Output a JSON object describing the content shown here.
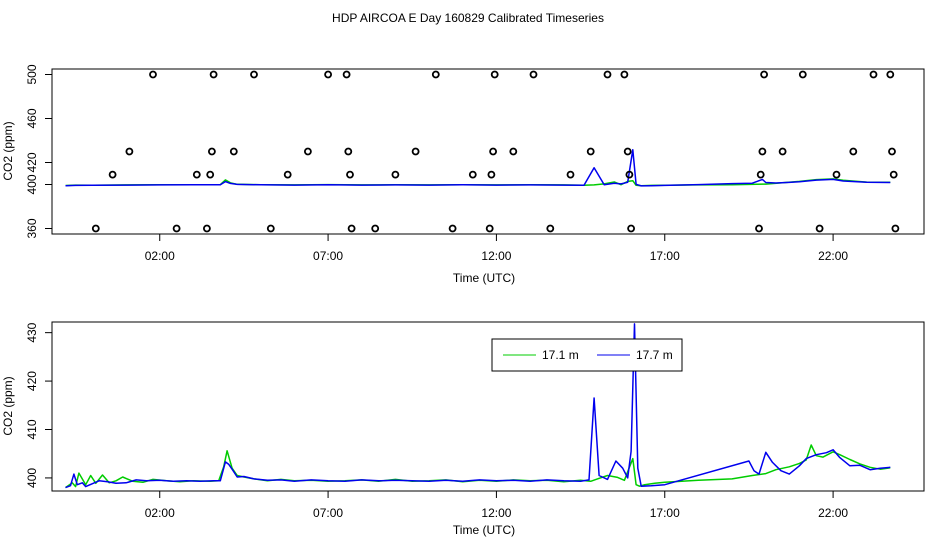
{
  "title": "HDP AIRCOA E  Day 160829  Calibrated Timeseries",
  "colors": {
    "green": "#00cc00",
    "blue": "#0000ee"
  },
  "chart_data": [
    {
      "type": "scatter",
      "xlabel": "Time (UTC)",
      "ylabel": "CO2 (ppm)",
      "xlim": [
        -1.2,
        24.7
      ],
      "ylim": [
        355,
        505
      ],
      "xticks": [
        2,
        7,
        12,
        17,
        22
      ],
      "xtick_labels": [
        "02:00",
        "07:00",
        "12:00",
        "17:00",
        "22:00"
      ],
      "yticks": [
        360,
        400,
        420,
        460,
        500
      ],
      "ytick_labels": [
        "360",
        "400",
        "420",
        "460",
        "500"
      ],
      "grid": false,
      "calibration_points": [
        [
          0.1,
          360
        ],
        [
          0.6,
          409
        ],
        [
          1.1,
          430
        ],
        [
          1.8,
          500
        ],
        [
          2.5,
          360
        ],
        [
          3.1,
          409
        ],
        [
          3.4,
          360
        ],
        [
          3.5,
          409
        ],
        [
          3.55,
          430
        ],
        [
          3.6,
          500
        ],
        [
          4.2,
          430
        ],
        [
          4.8,
          500
        ],
        [
          5.3,
          360
        ],
        [
          5.8,
          409
        ],
        [
          6.4,
          430
        ],
        [
          7.0,
          500
        ],
        [
          7.6,
          430
        ],
        [
          7.55,
          500
        ],
        [
          7.65,
          409
        ],
        [
          7.7,
          360
        ],
        [
          8.4,
          360
        ],
        [
          9.0,
          409
        ],
        [
          9.6,
          430
        ],
        [
          10.2,
          500
        ],
        [
          10.7,
          360
        ],
        [
          11.3,
          409
        ],
        [
          11.8,
          360
        ],
        [
          11.85,
          409
        ],
        [
          11.9,
          430
        ],
        [
          11.95,
          500
        ],
        [
          12.5,
          430
        ],
        [
          13.1,
          500
        ],
        [
          13.6,
          360
        ],
        [
          14.2,
          409
        ],
        [
          14.8,
          430
        ],
        [
          15.3,
          500
        ],
        [
          15.8,
          500
        ],
        [
          15.9,
          430
        ],
        [
          15.95,
          409
        ],
        [
          16.0,
          360
        ],
        [
          19.8,
          360
        ],
        [
          19.85,
          409
        ],
        [
          19.9,
          430
        ],
        [
          19.95,
          500
        ],
        [
          20.5,
          430
        ],
        [
          21.1,
          500
        ],
        [
          21.6,
          360
        ],
        [
          22.1,
          409
        ],
        [
          22.6,
          430
        ],
        [
          23.2,
          500
        ],
        [
          23.7,
          500
        ],
        [
          23.75,
          430
        ],
        [
          23.8,
          409
        ],
        [
          23.85,
          360
        ]
      ],
      "series": [
        {
          "color": "#00cc00",
          "x": [
            -0.8,
            -0.5,
            0,
            1,
            2,
            3,
            3.8,
            3.95,
            4.1,
            4.3,
            5,
            6,
            7,
            8,
            9,
            10,
            11,
            12,
            13,
            14,
            14.6,
            14.9,
            15.2,
            15.5,
            15.7,
            15.9,
            16.05,
            16.15,
            16.3,
            16.6,
            17,
            18,
            19,
            20,
            20.5,
            21,
            21.5,
            22,
            22.3,
            23,
            23.7
          ],
          "y": [
            399.1,
            399.5,
            399.4,
            399.6,
            399.7,
            399.7,
            399.8,
            404.2,
            401.5,
            400.2,
            399.8,
            399.6,
            399.9,
            399.6,
            399.7,
            399.6,
            399.8,
            399.6,
            399.7,
            399.6,
            399.4,
            399.6,
            400.5,
            402.3,
            399.8,
            402.8,
            403.5,
            399.3,
            398.9,
            399.2,
            399.3,
            399.6,
            399.8,
            400.4,
            401.5,
            402.8,
            404.5,
            405.1,
            403.8,
            402.2,
            402.1
          ]
        },
        {
          "color": "#0000ee",
          "x": [
            -0.8,
            -0.5,
            0,
            1,
            2,
            3,
            3.8,
            3.95,
            4.1,
            4.3,
            5,
            6,
            7,
            8,
            9,
            10,
            11,
            12,
            13,
            14,
            14.6,
            14.9,
            15.2,
            15.5,
            15.7,
            15.9,
            16.05,
            16.15,
            16.3,
            16.6,
            17,
            18,
            19,
            19.6,
            19.9,
            20,
            20.3,
            20.7,
            21,
            21.5,
            22,
            22.3,
            23,
            23.7
          ],
          "y": [
            398.8,
            399.2,
            399.3,
            399.5,
            399.6,
            399.7,
            399.7,
            402.6,
            401.0,
            400.1,
            399.7,
            399.5,
            399.8,
            399.5,
            399.6,
            399.5,
            399.7,
            399.5,
            399.6,
            399.5,
            399.3,
            415.2,
            399.8,
            401.2,
            400.5,
            402.0,
            431.5,
            400.2,
            398.7,
            398.9,
            399.2,
            399.9,
            400.8,
            401.2,
            404.6,
            401.8,
            401.4,
            401.9,
            402.5,
            404.0,
            404.6,
            403.2,
            402.0,
            401.8
          ]
        }
      ]
    },
    {
      "type": "line",
      "xlabel": "Time (UTC)",
      "ylabel": "CO2 (ppm)",
      "xlim": [
        -1.2,
        24.7
      ],
      "ylim": [
        397.3,
        432.2
      ],
      "xticks": [
        2,
        7,
        12,
        17,
        22
      ],
      "xtick_labels": [
        "02:00",
        "07:00",
        "12:00",
        "17:00",
        "22:00"
      ],
      "yticks": [
        400,
        410,
        420,
        430
      ],
      "ytick_labels": [
        "400",
        "410",
        "420",
        "430"
      ],
      "grid": false,
      "legend_position": "top-center",
      "series": [
        {
          "name": "17.1 m",
          "color": "#00cc00",
          "x": [
            -0.8,
            -0.6,
            -0.5,
            -0.4,
            -0.2,
            -0.05,
            0.1,
            0.3,
            0.5,
            0.7,
            0.9,
            1.2,
            1.5,
            1.8,
            2.2,
            2.6,
            3,
            3.5,
            3.75,
            3.9,
            4.0,
            4.15,
            4.3,
            4.5,
            4.8,
            5.2,
            5.6,
            6,
            6.5,
            7,
            7.5,
            8,
            8.5,
            9,
            9.5,
            10,
            10.5,
            11,
            11.5,
            12,
            12.5,
            13,
            13.5,
            14,
            14.5,
            14.8,
            15.0,
            15.3,
            15.6,
            15.8,
            15.95,
            16.05,
            16.15,
            16.25,
            16.4,
            16.7,
            17,
            18,
            19,
            19.6,
            20.0,
            20.3,
            20.7,
            21.0,
            21.2,
            21.35,
            21.5,
            21.7,
            22.0,
            22.2,
            22.5,
            22.8,
            23.1,
            23.4,
            23.7
          ],
          "y": [
            398.0,
            399.0,
            398.2,
            401.0,
            398.6,
            400.5,
            398.9,
            400.6,
            399.0,
            399.4,
            400.2,
            399.3,
            399.1,
            399.7,
            399.4,
            399.2,
            399.4,
            399.3,
            399.4,
            402.3,
            405.6,
            402.0,
            400.5,
            400.2,
            399.8,
            399.4,
            399.7,
            399.4,
            399.5,
            399.3,
            399.4,
            399.6,
            399.3,
            399.7,
            399.3,
            399.4,
            399.6,
            399.2,
            399.5,
            399.3,
            399.6,
            399.4,
            399.5,
            399.2,
            399.5,
            399.3,
            399.8,
            400.5,
            400.1,
            399.5,
            402.2,
            404.0,
            398.6,
            398.3,
            398.6,
            398.9,
            399.1,
            399.5,
            399.8,
            400.5,
            400.9,
            401.7,
            402.3,
            403.0,
            403.7,
            406.8,
            404.6,
            404.3,
            405.4,
            404.8,
            403.8,
            402.9,
            402.2,
            401.8,
            402.1
          ]
        },
        {
          "name": "17.7 m",
          "color": "#0000ee",
          "x": [
            -0.8,
            -0.65,
            -0.55,
            -0.45,
            -0.3,
            -0.2,
            0.0,
            0.2,
            0.45,
            0.7,
            1.0,
            1.3,
            1.6,
            2.0,
            2.4,
            2.8,
            3.2,
            3.6,
            3.8,
            3.95,
            4.05,
            4.15,
            4.3,
            4.5,
            4.8,
            5.2,
            5.6,
            6,
            6.5,
            7,
            7.5,
            8,
            8.5,
            9,
            9.5,
            10,
            10.5,
            11,
            11.5,
            12,
            12.5,
            13,
            13.5,
            14,
            14.5,
            14.75,
            14.9,
            15.05,
            15.3,
            15.55,
            15.75,
            15.9,
            16.0,
            16.1,
            16.2,
            16.3,
            16.6,
            17.0,
            19.5,
            19.65,
            19.8,
            20.0,
            20.2,
            20.45,
            20.7,
            21.0,
            21.2,
            21.5,
            21.8,
            22.0,
            22.2,
            22.5,
            22.8,
            23.1,
            23.4,
            23.7
          ],
          "y": [
            398.0,
            398.4,
            400.8,
            398.6,
            399.0,
            398.2,
            398.8,
            399.4,
            399.2,
            398.9,
            399.0,
            399.6,
            399.4,
            399.5,
            399.3,
            399.4,
            399.3,
            399.4,
            399.4,
            403.3,
            402.8,
            401.8,
            400.2,
            400.3,
            399.8,
            399.5,
            399.6,
            399.3,
            399.6,
            399.4,
            399.3,
            399.6,
            399.4,
            399.5,
            399.4,
            399.3,
            399.5,
            399.3,
            399.6,
            399.4,
            399.5,
            399.3,
            399.6,
            399.4,
            399.3,
            399.6,
            416.5,
            400.5,
            399.7,
            403.5,
            402.0,
            400.0,
            405.5,
            431.8,
            402.0,
            398.3,
            398.4,
            398.6,
            403.5,
            401.5,
            400.8,
            405.3,
            403.2,
            401.5,
            400.8,
            402.5,
            404.0,
            404.8,
            405.2,
            405.8,
            404.2,
            402.5,
            402.6,
            401.7,
            402.0,
            402.2
          ]
        }
      ]
    }
  ]
}
